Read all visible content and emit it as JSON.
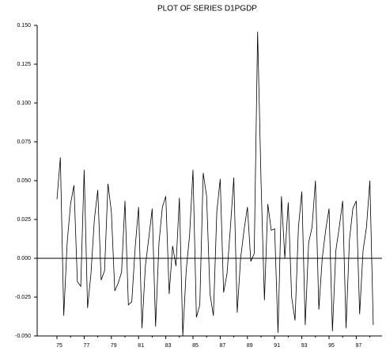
{
  "chart_data": {
    "type": "line",
    "title": "PLOT OF SERIES D1PGDP",
    "categories": [
      "75",
      null,
      null,
      null,
      null,
      null,
      null,
      null,
      "77",
      null,
      null,
      null,
      null,
      null,
      null,
      null,
      "79",
      null,
      null,
      null,
      null,
      null,
      null,
      null,
      "81",
      null,
      null,
      null,
      null,
      null,
      null,
      null,
      "83",
      null,
      null,
      null,
      null,
      null,
      null,
      null,
      "85",
      null,
      null,
      null,
      null,
      null,
      null,
      null,
      "87",
      null,
      null,
      null,
      null,
      null,
      null,
      null,
      "89",
      null,
      null,
      null,
      null,
      null,
      null,
      null,
      "91",
      null,
      null,
      null,
      null,
      null,
      null,
      null,
      "93",
      null,
      null,
      null,
      null,
      null,
      null,
      null,
      "95",
      null,
      null,
      null,
      null,
      null,
      null,
      null,
      "97",
      null,
      null,
      null,
      null,
      null
    ],
    "series": [
      {
        "name": "D1PGDP",
        "color": "#000000",
        "values": [
          0.038,
          0.065,
          -0.037,
          0.01,
          0.035,
          0.047,
          -0.015,
          -0.018,
          0.057,
          -0.032,
          -0.01,
          0.025,
          0.044,
          -0.014,
          -0.008,
          0.048,
          0.03,
          -0.021,
          -0.016,
          -0.009,
          0.037,
          -0.03,
          -0.028,
          0.007,
          0.033,
          -0.045,
          -0.005,
          0.013,
          0.032,
          -0.044,
          0.01,
          0.033,
          0.04,
          -0.023,
          0.008,
          -0.005,
          0.039,
          -0.05,
          -0.008,
          0.015,
          0.057,
          -0.038,
          -0.03,
          0.055,
          0.04,
          -0.023,
          -0.037,
          0.03,
          0.051,
          -0.022,
          -0.01,
          0.02,
          0.052,
          -0.035,
          0.0,
          0.018,
          0.033,
          -0.002,
          0.003,
          0.146,
          0.05,
          -0.027,
          0.035,
          0.018,
          0.019,
          -0.048,
          0.04,
          0.0,
          0.036,
          -0.025,
          -0.04,
          0.02,
          0.043,
          -0.043,
          0.01,
          0.02,
          0.05,
          -0.033,
          0.0,
          0.018,
          0.032,
          -0.047,
          0.005,
          0.02,
          0.037,
          -0.045,
          0.012,
          0.032,
          0.037,
          -0.036,
          0.005,
          0.02,
          0.05,
          -0.043
        ]
      }
    ],
    "ylim": [
      -0.05,
      0.15
    ],
    "yticks": [
      {
        "value": -0.05,
        "label": "-0.050"
      },
      {
        "value": -0.025,
        "label": "-0.025"
      },
      {
        "value": 0,
        "label": "0.000"
      },
      {
        "value": 0.025,
        "label": "0.025"
      },
      {
        "value": 0.05,
        "label": "0.050"
      },
      {
        "value": 0.075,
        "label": "0.075"
      },
      {
        "value": 0.1,
        "label": "0.100"
      },
      {
        "value": 0.125,
        "label": "0.125"
      },
      {
        "value": 0.15,
        "label": "0.150"
      }
    ],
    "zero_line": true
  }
}
